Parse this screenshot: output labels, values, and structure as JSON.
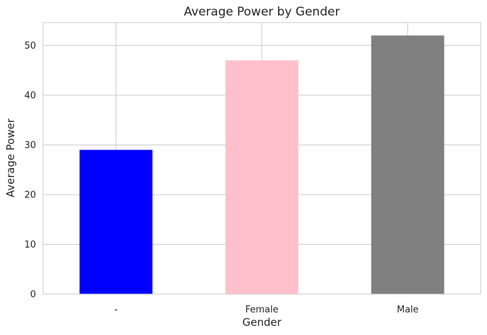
{
  "chart_data": {
    "type": "bar",
    "title": "Average Power by Gender",
    "xlabel": "Gender",
    "ylabel": "Average Power",
    "categories": [
      "-",
      "Female",
      "Male"
    ],
    "values": [
      29,
      47,
      52
    ],
    "colors": [
      "#0000ff",
      "#ffc0cb",
      "#808080"
    ],
    "ylim": [
      0,
      54.6
    ],
    "yticks": [
      "0",
      "10",
      "20",
      "30",
      "40",
      "50"
    ],
    "grid": true,
    "legend": "none"
  }
}
